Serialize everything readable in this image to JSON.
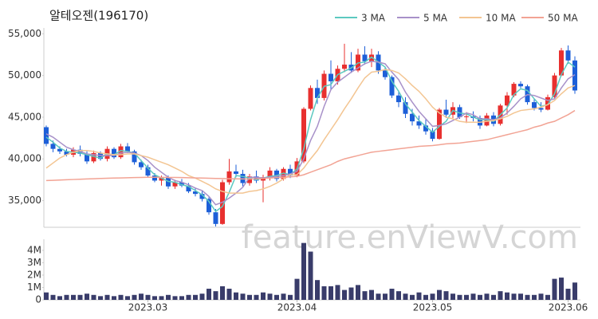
{
  "chart_data": [
    {
      "type": "candlestick",
      "title": "알테오젠(196170)",
      "watermark": "feature.enViewV.com",
      "ylim": [
        31800,
        55700
      ],
      "yticks": [
        {
          "value": 35000,
          "label": "35,000"
        },
        {
          "value": 40000,
          "label": "40,000"
        },
        {
          "value": 45000,
          "label": "45,000"
        },
        {
          "value": 50000,
          "label": "50,000"
        },
        {
          "value": 55000,
          "label": "55,000"
        }
      ],
      "up_color": "#e8302f",
      "down_color": "#1d5fd8",
      "legend": "top-right",
      "open": [
        43800,
        41800,
        41200,
        40900,
        40500,
        41100,
        40600,
        39700,
        40700,
        40000,
        41200,
        40200,
        41500,
        40900,
        39600,
        39000,
        38000,
        37400,
        37800,
        36700,
        37200,
        36800,
        36100,
        35800,
        35200,
        33600,
        32200,
        37200,
        38500,
        38200,
        37100,
        37900,
        37400,
        37800,
        38600,
        37600,
        38800,
        38000,
        39700,
        46000,
        48500,
        47300,
        50200,
        49300,
        50800,
        51300,
        50600,
        52500,
        51700,
        52500,
        50600,
        49800,
        47600,
        46800,
        45400,
        44500,
        44000,
        43300,
        42400,
        45900,
        45300,
        46200,
        45000,
        45100,
        44900,
        44000,
        45200,
        44200,
        46400,
        47600,
        49000,
        48700,
        46800,
        46100,
        45900,
        47400,
        50000,
        53000,
        51800
      ],
      "high": [
        44000,
        42200,
        41500,
        41200,
        41400,
        41600,
        40900,
        41000,
        40900,
        41500,
        41400,
        41800,
        41900,
        41100,
        39900,
        39300,
        38300,
        38000,
        38000,
        37500,
        37600,
        37100,
        36500,
        36200,
        35400,
        34000,
        37500,
        40000,
        39300,
        38700,
        38200,
        38600,
        38100,
        39000,
        38800,
        39000,
        39300,
        40100,
        46200,
        48800,
        49500,
        50600,
        51800,
        51200,
        53800,
        52800,
        53200,
        53500,
        53200,
        52900,
        51000,
        50000,
        48200,
        47400,
        46000,
        45200,
        44800,
        43700,
        46100,
        47100,
        46800,
        46500,
        45600,
        45700,
        45200,
        45500,
        45600,
        46600,
        48000,
        49200,
        49300,
        48900,
        47200,
        46800,
        47700,
        50300,
        53300,
        53600,
        52300
      ],
      "low": [
        41500,
        40800,
        40600,
        40300,
        40200,
        40300,
        39400,
        39500,
        39800,
        39700,
        40000,
        40000,
        40700,
        39300,
        38700,
        37800,
        37200,
        36800,
        36400,
        36400,
        36600,
        35900,
        35500,
        34900,
        33300,
        31900,
        32100,
        36900,
        37800,
        36700,
        36800,
        37100,
        34800,
        37400,
        37300,
        37400,
        37700,
        37800,
        39500,
        45800,
        46600,
        47000,
        48300,
        48900,
        50400,
        50300,
        50400,
        51300,
        51000,
        50200,
        49500,
        47300,
        46200,
        44900,
        44000,
        43600,
        42900,
        42100,
        42300,
        44900,
        44900,
        44800,
        44300,
        44500,
        43600,
        43900,
        43900,
        44000,
        45300,
        47400,
        48500,
        46500,
        45800,
        45600,
        45800,
        47200,
        49900,
        51400,
        47800
      ],
      "close": [
        41800,
        41200,
        40900,
        40500,
        41100,
        40600,
        39700,
        40700,
        40000,
        41200,
        40200,
        41500,
        40900,
        39600,
        39000,
        38000,
        37400,
        37800,
        36700,
        37200,
        36800,
        36100,
        35800,
        35200,
        33600,
        32200,
        37200,
        38500,
        38200,
        37100,
        37900,
        37400,
        37800,
        38600,
        37600,
        38800,
        38000,
        39700,
        46000,
        48500,
        47300,
        50200,
        49300,
        50800,
        51300,
        50600,
        52500,
        51700,
        52500,
        50600,
        49800,
        47600,
        46800,
        45400,
        44500,
        44000,
        43300,
        42400,
        45900,
        45300,
        46200,
        45000,
        45100,
        44900,
        44000,
        45200,
        44200,
        46400,
        47600,
        49000,
        48700,
        46800,
        46100,
        45900,
        47400,
        50000,
        53000,
        51800,
        48200
      ],
      "series": [
        {
          "name": "3 MA",
          "color": "#5cc9c0",
          "values": [
            42600,
            42000,
            41300,
            40900,
            40800,
            40700,
            40500,
            40300,
            40100,
            40600,
            40500,
            41000,
            40900,
            40700,
            39800,
            38900,
            38100,
            37700,
            37300,
            37200,
            36900,
            36700,
            36200,
            35700,
            34900,
            33700,
            34300,
            36000,
            38000,
            37900,
            37700,
            37500,
            37700,
            37900,
            38000,
            38300,
            38100,
            38800,
            41200,
            44700,
            47300,
            48700,
            48900,
            50100,
            50500,
            50900,
            51500,
            51600,
            52200,
            51600,
            51000,
            49300,
            48100,
            46600,
            45600,
            44600,
            43900,
            43200,
            43900,
            44500,
            45800,
            45500,
            45400,
            45000,
            44700,
            44700,
            44500,
            45300,
            46100,
            47700,
            48400,
            48200,
            47200,
            46300,
            46500,
            47800,
            50100,
            51600,
            51000
          ]
        },
        {
          "name": "5 MA",
          "color": "#a891c9",
          "values": [
            43000,
            42600,
            42000,
            41400,
            41100,
            40900,
            40600,
            40500,
            40400,
            40400,
            40400,
            40700,
            40800,
            40700,
            40400,
            39800,
            39000,
            38400,
            37800,
            37400,
            37200,
            36900,
            36500,
            36200,
            35500,
            34500,
            34800,
            35300,
            35900,
            36600,
            37800,
            37800,
            37700,
            37800,
            37900,
            38000,
            38200,
            38500,
            40000,
            42200,
            43900,
            46300,
            48300,
            49200,
            49800,
            50400,
            50900,
            51400,
            51700,
            51600,
            51400,
            50400,
            49500,
            48000,
            46800,
            45700,
            44800,
            43900,
            44000,
            44200,
            44600,
            45000,
            45500,
            45300,
            44800,
            44800,
            44700,
            44900,
            45500,
            46300,
            47200,
            47700,
            47600,
            47300,
            47000,
            47200,
            48500,
            49600,
            50100
          ]
        },
        {
          "name": "10 MA",
          "color": "#f3c592",
          "values": [
            38900,
            39500,
            40100,
            40500,
            40800,
            41000,
            41000,
            40900,
            40700,
            40600,
            40500,
            40500,
            40600,
            40600,
            40400,
            40200,
            39900,
            39600,
            39300,
            38900,
            38500,
            38000,
            37700,
            37300,
            36900,
            36400,
            36100,
            35900,
            35900,
            35900,
            36100,
            36200,
            36400,
            36700,
            37100,
            37600,
            38100,
            38100,
            38900,
            40000,
            41000,
            42300,
            43500,
            44700,
            46000,
            47200,
            48500,
            49700,
            50400,
            50500,
            50700,
            50600,
            50300,
            49600,
            48800,
            48100,
            47200,
            46200,
            45500,
            45000,
            44800,
            44500,
            44400,
            44400,
            44400,
            44500,
            44600,
            44800,
            45100,
            45500,
            45800,
            45900,
            46000,
            46200,
            46500,
            47000,
            47800,
            48500,
            48800
          ]
        },
        {
          "name": "50 MA",
          "color": "#f2a394",
          "values": [
            37400,
            37430,
            37460,
            37500,
            37530,
            37560,
            37590,
            37620,
            37650,
            37680,
            37700,
            37720,
            37740,
            37760,
            37780,
            37800,
            37800,
            37790,
            37780,
            37770,
            37760,
            37740,
            37720,
            37700,
            37680,
            37660,
            37640,
            37620,
            37610,
            37600,
            37600,
            37620,
            37650,
            37700,
            37750,
            37800,
            37850,
            37900,
            38100,
            38400,
            38700,
            39000,
            39300,
            39700,
            40000,
            40200,
            40400,
            40600,
            40800,
            40900,
            41000,
            41100,
            41200,
            41300,
            41400,
            41500,
            41550,
            41600,
            41700,
            41800,
            41850,
            41900,
            42000,
            42100,
            42200,
            42300,
            42500,
            42700,
            42900,
            43100,
            43300,
            43500,
            43800,
            44000,
            44300,
            44500,
            44900,
            45300,
            45800
          ]
        }
      ]
    },
    {
      "type": "bar",
      "color": "#393c6a",
      "ylim": [
        0,
        4900000
      ],
      "yticks": [
        0,
        {
          "value": 1000000,
          "label": "1M"
        },
        {
          "value": 2000000,
          "label": "2M"
        },
        {
          "value": 3000000,
          "label": "3M"
        },
        {
          "value": 4000000,
          "label": "4M"
        }
      ],
      "categories": [
        null,
        null,
        null,
        null,
        null,
        null,
        null,
        null,
        null,
        null,
        null,
        null,
        null,
        null,
        null,
        "2023.03",
        null,
        null,
        null,
        null,
        null,
        null,
        null,
        null,
        null,
        null,
        null,
        null,
        null,
        null,
        null,
        null,
        null,
        null,
        null,
        null,
        null,
        "2023.04",
        null,
        null,
        null,
        null,
        null,
        null,
        null,
        null,
        null,
        null,
        null,
        null,
        null,
        null,
        null,
        null,
        null,
        null,
        null,
        "2023.05",
        null,
        null,
        null,
        null,
        null,
        null,
        null,
        null,
        null,
        null,
        null,
        null,
        null,
        null,
        null,
        null,
        null,
        null,
        null,
        "2023.06",
        null
      ],
      "values": [
        600000,
        400000,
        300000,
        400000,
        400000,
        400000,
        500000,
        400000,
        300000,
        400000,
        300000,
        400000,
        300000,
        400000,
        500000,
        400000,
        300000,
        300000,
        400000,
        300000,
        300000,
        400000,
        400000,
        500000,
        900000,
        700000,
        1100000,
        900000,
        600000,
        500000,
        400000,
        400000,
        600000,
        500000,
        400000,
        500000,
        400000,
        1700000,
        4600000,
        3900000,
        1600000,
        1100000,
        1100000,
        1200000,
        800000,
        1000000,
        1200000,
        700000,
        800000,
        500000,
        500000,
        900000,
        700000,
        500000,
        400000,
        600000,
        400000,
        500000,
        800000,
        700000,
        500000,
        400000,
        400000,
        500000,
        400000,
        500000,
        400000,
        700000,
        600000,
        500000,
        500000,
        400000,
        400000,
        500000,
        400000,
        1700000,
        1800000,
        900000,
        1400000
      ]
    }
  ]
}
